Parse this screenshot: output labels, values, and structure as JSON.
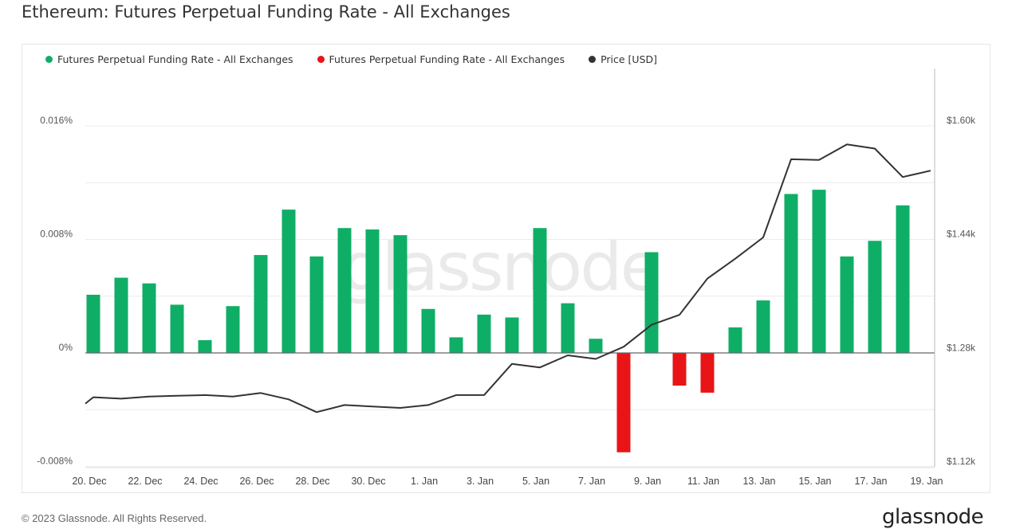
{
  "header": {
    "title": "Ethereum: Futures Perpetual Funding Rate - All Exchanges"
  },
  "legend": {
    "items": [
      {
        "label": "Futures Perpetual Funding Rate - All Exchanges",
        "color": "#0fae66"
      },
      {
        "label": "Futures Perpetual Funding Rate - All Exchanges",
        "color": "#e81416"
      },
      {
        "label": "Price [USD]",
        "color": "#333333"
      }
    ]
  },
  "watermark": "glassnode",
  "footer": {
    "copyright": "© 2023 Glassnode. All Rights Reserved.",
    "logo": "glassnode"
  },
  "chart_data": {
    "type": "bar",
    "title": "Ethereum: Futures Perpetual Funding Rate - All Exchanges",
    "x": [
      "20 Dec",
      "21 Dec",
      "22 Dec",
      "23 Dec",
      "24 Dec",
      "25 Dec",
      "26 Dec",
      "27 Dec",
      "28 Dec",
      "29 Dec",
      "30 Dec",
      "31 Dec",
      "1 Jan",
      "2 Jan",
      "3 Jan",
      "4 Jan",
      "5 Jan",
      "6 Jan",
      "7 Jan",
      "8 Jan",
      "9 Jan",
      "10 Jan",
      "11 Jan",
      "12 Jan",
      "13 Jan",
      "14 Jan",
      "15 Jan",
      "16 Jan",
      "17 Jan",
      "18 Jan",
      "19 Jan"
    ],
    "x_tick_labels": [
      "20. Dec",
      "22. Dec",
      "24. Dec",
      "26. Dec",
      "28. Dec",
      "30. Dec",
      "1. Jan",
      "3. Jan",
      "5. Jan",
      "7. Jan",
      "9. Jan",
      "11. Jan",
      "13. Jan",
      "15. Jan",
      "17. Jan",
      "19. Jan"
    ],
    "series": [
      {
        "name": "Futures Perpetual Funding Rate - All Exchanges",
        "kind": "bar",
        "axis": "left",
        "positive_color": "#0fae66",
        "negative_color": "#e81416",
        "values": [
          0.0041,
          0.0053,
          0.0049,
          0.0034,
          0.0009,
          0.0033,
          0.0069,
          0.0101,
          0.0068,
          0.0088,
          0.0087,
          0.0083,
          0.0031,
          0.0011,
          0.0027,
          0.0025,
          0.0088,
          0.0035,
          0.001,
          -0.007,
          0.0071,
          -0.0023,
          -0.0028,
          0.0018,
          0.0037,
          0.0112,
          0.0115,
          0.0068,
          0.0079,
          0.0104,
          null
        ]
      },
      {
        "name": "Price [USD]",
        "kind": "line",
        "axis": "right",
        "color": "#333333",
        "values": [
          1218,
          1216,
          1219,
          1220,
          1221,
          1219,
          1224,
          1215,
          1197,
          1207,
          1205,
          1203,
          1207,
          1221,
          1221,
          1265,
          1260,
          1277,
          1272,
          1289,
          1320,
          1334,
          1385,
          1413,
          1443,
          1553,
          1552,
          1574,
          1568,
          1528,
          1537
        ]
      }
    ],
    "y_left": {
      "ticks": [
        "0.016%",
        "0.008%",
        "0%",
        "-0.008%"
      ],
      "min": -0.008,
      "max": 0.016
    },
    "y_right": {
      "ticks": [
        "$1.60k",
        "$1.44k",
        "$1.28k",
        "$1.12k"
      ],
      "min": 1120,
      "max": 1600
    },
    "grid": true,
    "legend_position": "top-left"
  }
}
